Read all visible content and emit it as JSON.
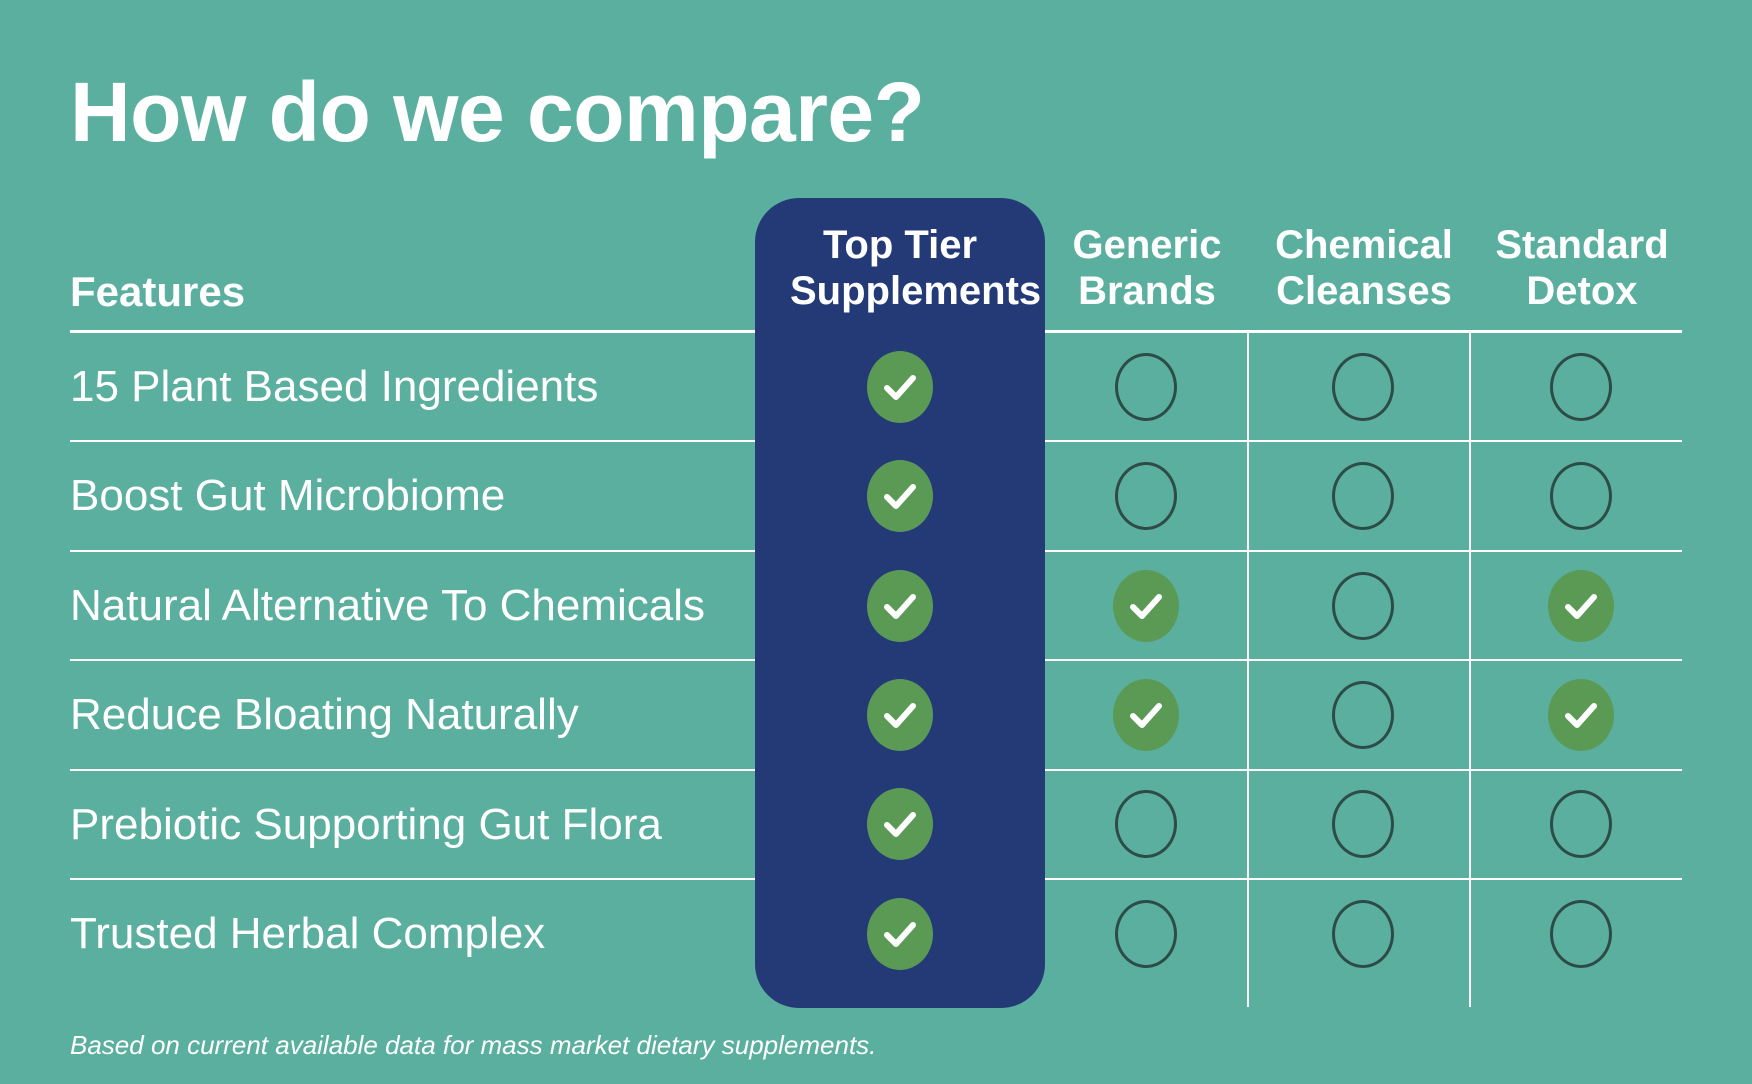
{
  "title": "How do we compare?",
  "features_heading": "Features",
  "columns": [
    {
      "line1": "Top Tier",
      "line2": "Supplements",
      "highlight": true
    },
    {
      "line1": "Generic",
      "line2": "Brands",
      "highlight": false
    },
    {
      "line1": "Chemical",
      "line2": "Cleanses",
      "highlight": false
    },
    {
      "line1": "Standard",
      "line2": "Detox",
      "highlight": false
    }
  ],
  "rows": [
    {
      "label": "15 Plant Based Ingredients",
      "marks": [
        "check",
        "empty",
        "empty",
        "empty"
      ]
    },
    {
      "label": "Boost Gut Microbiome",
      "marks": [
        "check",
        "empty",
        "empty",
        "empty"
      ]
    },
    {
      "label": "Natural Alternative To Chemicals",
      "marks": [
        "check",
        "check",
        "empty",
        "check"
      ]
    },
    {
      "label": "Reduce Bloating Naturally",
      "marks": [
        "check",
        "check",
        "empty",
        "check"
      ]
    },
    {
      "label": "Prebiotic Supporting Gut Flora",
      "marks": [
        "check",
        "empty",
        "empty",
        "empty"
      ]
    },
    {
      "label": "Trusted Herbal Complex",
      "marks": [
        "check",
        "empty",
        "empty",
        "empty"
      ]
    }
  ],
  "footnote": "Based on current available data for mass market dietary supplements.",
  "colors": {
    "background": "#5aaf9f",
    "highlight_column": "#233a77",
    "check_fill": "#5a9a55",
    "empty_ring": "#2e4c47",
    "text": "#ffffff"
  },
  "icons": {
    "check": "check-circle-icon",
    "empty": "empty-circle-icon"
  }
}
